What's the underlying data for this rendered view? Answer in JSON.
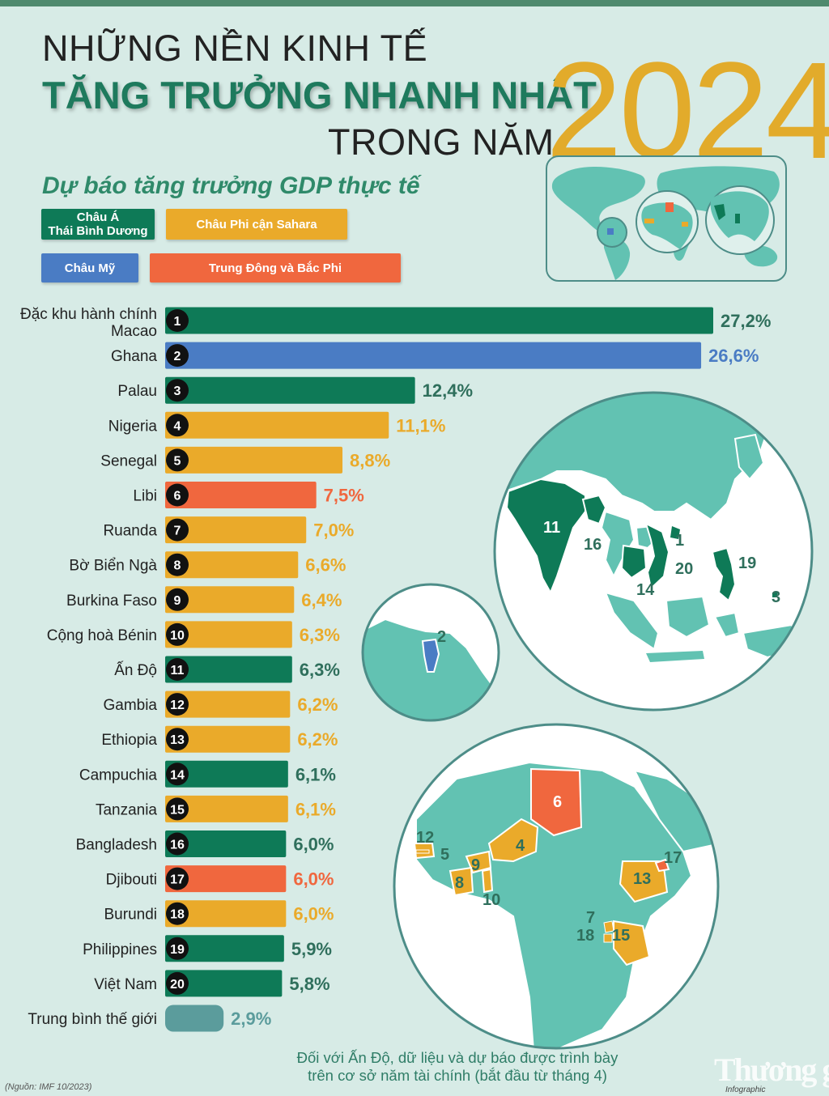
{
  "header": {
    "line1": "NHỮNG NỀN KINH TẾ",
    "line2": "TĂNG TRƯỞNG NHANH NHẤT",
    "line3": "TRONG NĂM",
    "year": "2024",
    "subtitle": "Dự báo tăng trưởng GDP thực tế"
  },
  "legend": [
    {
      "label_1": "Châu Á",
      "label_2": "Thái Bình Dương",
      "color": "#0e7a57"
    },
    {
      "label_1": "Châu Phi cận Sahara",
      "label_2": "",
      "color": "#eaaa2a"
    },
    {
      "label_1": "Châu Mỹ",
      "label_2": "",
      "color": "#4a7cc4"
    },
    {
      "label_1": "Trung Đông và Bắc Phi",
      "label_2": "",
      "color": "#f0673e"
    }
  ],
  "colors": {
    "asia": "#0e7a57",
    "africa": "#eaaa2a",
    "america": "#4a7cc4",
    "mena": "#f0673e",
    "world": "#5b9c9c",
    "land": "#62c2b2",
    "water": "#ffffff",
    "background": "#d7ebe6"
  },
  "chart_data": {
    "type": "bar",
    "orientation": "horizontal",
    "unit": "%",
    "categories": [
      "Đặc khu hành chính Macao",
      "Ghana",
      "Palau",
      "Nigeria",
      "Senegal",
      "Libi",
      "Ruanda",
      "Bờ Biển Ngà",
      "Burkina Faso",
      "Cộng hoà Bénin",
      "Ấn Độ",
      "Gambia",
      "Ethiopia",
      "Campuchia",
      "Tanzania",
      "Bangladesh",
      "Djibouti",
      "Burundi",
      "Philippines",
      "Việt Nam",
      "Trung bình thế giới"
    ],
    "ranks": [
      "1",
      "2",
      "3",
      "4",
      "5",
      "6",
      "7",
      "8",
      "9",
      "10",
      "11",
      "12",
      "13",
      "14",
      "15",
      "16",
      "17",
      "18",
      "19",
      "20",
      ""
    ],
    "values": [
      27.2,
      26.6,
      12.4,
      11.1,
      8.8,
      7.5,
      7.0,
      6.6,
      6.4,
      6.3,
      6.3,
      6.2,
      6.2,
      6.1,
      6.1,
      6.0,
      6.0,
      6.0,
      5.9,
      5.8,
      2.9
    ],
    "value_labels": [
      "27,2%",
      "26,6%",
      "12,4%",
      "11,1%",
      "8,8%",
      "7,5%",
      "7,0%",
      "6,6%",
      "6,4%",
      "6,3%",
      "6,3%",
      "6,2%",
      "6,2%",
      "6,1%",
      "6,1%",
      "6,0%",
      "6,0%",
      "6,0%",
      "5,9%",
      "5,8%",
      "2,9%"
    ],
    "regions": [
      "asia",
      "america",
      "asia",
      "africa",
      "africa",
      "mena",
      "africa",
      "africa",
      "africa",
      "africa",
      "asia",
      "africa",
      "africa",
      "asia",
      "africa",
      "asia",
      "mena",
      "africa",
      "asia",
      "asia",
      "world"
    ],
    "xlim": [
      0,
      27.2
    ],
    "grid": false,
    "legend_position": "top-left"
  },
  "maps": {
    "asia_labels": [
      "11",
      "16",
      "1",
      "20",
      "14",
      "19",
      "3"
    ],
    "america_labels": [
      "2"
    ],
    "africa_labels": [
      "6",
      "12",
      "5",
      "4",
      "9",
      "8",
      "10",
      "13",
      "17",
      "7",
      "18",
      "15"
    ]
  },
  "footer": {
    "note_1": "Đối với Ấn Độ, dữ liệu và dự báo được trình bày",
    "note_2": "trên cơ sở năm tài chính (bắt đầu từ tháng 4)",
    "source": "(Nguồn: IMF 10/2023)",
    "brand": "Thương gia",
    "brand_sub": "Infographic"
  }
}
